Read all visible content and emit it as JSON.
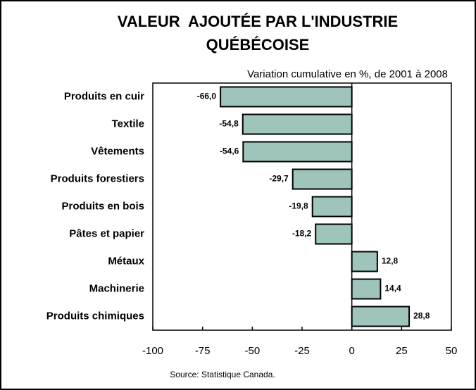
{
  "chart_data": {
    "type": "hbar",
    "title": "VALEUR  AJOUTÉE PAR L'INDUSTRIE QUÉBÉCOISE",
    "subtitle": "Variation cumulative en %, de 2001 à 2008",
    "source": "Source: Statistique Canada.",
    "categories": [
      "Produits en cuir",
      "Textile",
      "Vêtements",
      "Produits forestiers",
      "Produits en bois",
      "Pâtes et papier",
      "Métaux",
      "Machinerie",
      "Produits chimiques"
    ],
    "values": [
      -66.0,
      -54.8,
      -54.6,
      -29.7,
      -19.8,
      -18.2,
      12.8,
      14.4,
      28.8
    ],
    "value_labels": [
      "-66,0",
      "-54,8",
      "-54,6",
      "-29,7",
      "-19,8",
      "-18,2",
      "12,8",
      "14,4",
      "28,8"
    ],
    "color": "#9ec4bb",
    "xlim": [
      -100,
      50
    ],
    "xticks": [
      -100,
      -75,
      -50,
      -25,
      0,
      25,
      50
    ]
  }
}
